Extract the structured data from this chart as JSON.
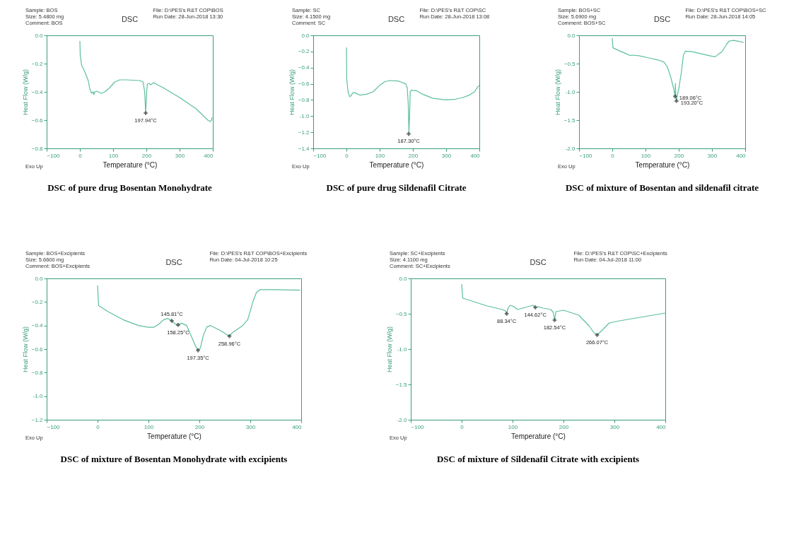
{
  "chart_data": [
    {
      "type": "line",
      "title": "DSC",
      "xlabel": "Temperature (°C)",
      "ylabel": "Heat Flow (W/g)",
      "xlim": [
        -100,
        400
      ],
      "xticks": [
        -100,
        0,
        100,
        200,
        300,
        400
      ],
      "ylim": [
        -0.8,
        0
      ],
      "yticks": [
        {
          "value": 0,
          "label": "0.0"
        },
        -0.2,
        -0.4,
        -0.6,
        -0.8
      ],
      "series": [
        {
          "color": "#5cbf9c",
          "x": [
            0,
            1,
            5,
            15,
            25,
            30,
            35,
            40,
            42,
            45,
            50,
            55,
            65,
            75,
            90,
            105,
            120,
            140,
            180,
            190,
            195,
            198,
            201,
            203,
            208,
            213,
            222,
            250,
            300,
            350,
            385,
            392,
            396,
            398
          ],
          "values": [
            -0.04,
            -0.14,
            -0.21,
            -0.26,
            -0.32,
            -0.38,
            -0.41,
            -0.4,
            -0.42,
            -0.4,
            -0.395,
            -0.4,
            -0.41,
            -0.4,
            -0.37,
            -0.33,
            -0.315,
            -0.315,
            -0.32,
            -0.33,
            -0.4,
            -0.55,
            -0.4,
            -0.345,
            -0.34,
            -0.35,
            -0.335,
            -0.37,
            -0.44,
            -0.52,
            -0.6,
            -0.61,
            -0.6,
            -0.58
          ]
        }
      ],
      "annotations": [
        "Sample: BOS",
        "Size: 5.4800 mg",
        "Comment: BOS",
        "File: D:\\PES's R&T COP\\BOS",
        "Run Date: 28-Jun-2018 13:30",
        "Exo Up",
        "DSC of pure drug Bosentan Monohydrate",
        {
          "text": "197.94°C",
          "x": 197.94,
          "y": -0.55
        }
      ]
    },
    {
      "type": "line",
      "title": "DSC",
      "xlabel": "Temperature (°C)",
      "ylabel": "Heat Flow (W/g)",
      "xlim": [
        -100,
        400
      ],
      "xticks": [
        -100,
        0,
        100,
        200,
        300,
        400
      ],
      "ylim": [
        -1.4,
        0
      ],
      "yticks": [
        {
          "value": 0,
          "label": "0.0"
        },
        -0.2,
        -0.4,
        -0.6,
        -0.8,
        {
          "value": -1,
          "label": "-1.0"
        },
        -1.2,
        -1.4
      ],
      "series": [
        {
          "color": "#5cbf9c",
          "x": [
            0,
            1,
            5,
            10,
            13,
            20,
            25,
            40,
            60,
            80,
            100,
            115,
            130,
            155,
            165,
            178,
            183,
            186,
            188,
            190,
            192,
            195,
            210,
            230,
            260,
            300,
            330,
            350,
            370,
            385,
            395,
            400
          ],
          "values": [
            -0.15,
            -0.55,
            -0.7,
            -0.76,
            -0.75,
            -0.71,
            -0.71,
            -0.74,
            -0.73,
            -0.7,
            -0.62,
            -0.575,
            -0.56,
            -0.565,
            -0.58,
            -0.6,
            -0.65,
            -0.85,
            -1.2,
            -1.0,
            -0.7,
            -0.68,
            -0.685,
            -0.73,
            -0.78,
            -0.8,
            -0.79,
            -0.77,
            -0.74,
            -0.7,
            -0.64,
            -0.62
          ]
        }
      ],
      "annotations": [
        "Sample: SC",
        "Size: 4.1500 mg",
        "Comment: SC",
        "File: D:\\PES's R&T COP\\SC",
        "Run Date: 28-Jun-2018 13:08",
        "Exo Up",
        "DSC of pure drug Sildenafil Citrate",
        {
          "text": "187.30°C",
          "x": 187.3,
          "y": -1.22
        }
      ]
    },
    {
      "type": "line",
      "title": "DSC",
      "xlabel": "Temperature (°C)",
      "ylabel": "Heat Flow (W/g)",
      "xlim": [
        -100,
        400
      ],
      "xticks": [
        -100,
        0,
        100,
        200,
        300,
        400
      ],
      "ylim": [
        -2,
        0
      ],
      "yticks": [
        {
          "value": 0,
          "label": "0.0"
        },
        -0.5,
        {
          "value": -1,
          "label": "-1.0"
        },
        -1.5,
        {
          "value": -2,
          "label": "-2.0"
        }
      ],
      "series": [
        {
          "color": "#5cbf9c",
          "x": [
            0,
            2,
            20,
            40,
            55,
            60,
            80,
            110,
            140,
            155,
            165,
            175,
            185,
            189,
            190,
            191,
            193,
            195,
            200,
            208,
            214,
            220,
            240,
            270,
            300,
            310,
            320,
            330,
            345,
            352,
            365,
            385,
            395
          ],
          "values": [
            -0.05,
            -0.22,
            -0.27,
            -0.32,
            -0.36,
            -0.35,
            -0.36,
            -0.4,
            -0.44,
            -0.47,
            -0.55,
            -0.72,
            -0.95,
            -1.08,
            -0.85,
            -1.05,
            -1.15,
            -1.08,
            -0.95,
            -0.65,
            -0.35,
            -0.28,
            -0.29,
            -0.33,
            -0.37,
            -0.38,
            -0.33,
            -0.29,
            -0.15,
            -0.1,
            -0.09,
            -0.11,
            -0.13
          ]
        }
      ],
      "annotations": [
        "Sample: BOS+SC",
        "Size: 5.6900 mg",
        "Comment: BOS+SC",
        "File: D:\\PES's R&T COP\\BOS+SC",
        "Run Date: 28-Jun-2018 14:05",
        "Exo Up",
        "DSC of mixture  of Bosentan and sildenafil citrate",
        {
          "text": "189.06°C",
          "x": 189.06,
          "y": -1.08
        },
        {
          "text": "193.20°C",
          "x": 193.2,
          "y": -1.16
        }
      ]
    },
    {
      "type": "line",
      "title": "DSC",
      "xlabel": "Temperature (°C)",
      "ylabel": "Heat Flow (W/g)",
      "xlim": [
        -100,
        400
      ],
      "xticks": [
        -100,
        0,
        100,
        200,
        300,
        400
      ],
      "ylim": [
        -1.2,
        0
      ],
      "yticks": [
        {
          "value": 0,
          "label": "0.0"
        },
        -0.2,
        -0.4,
        -0.6,
        -0.8,
        {
          "value": -1,
          "label": "-1.0"
        },
        -1.2
      ],
      "series": [
        {
          "color": "#5cbf9c",
          "x": [
            0,
            2,
            20,
            50,
            80,
            100,
            110,
            120,
            130,
            138,
            145.81,
            152,
            158.25,
            165,
            175,
            185,
            193,
            197.35,
            202,
            208,
            215,
            222,
            240,
            258.96,
            265,
            275,
            285,
            295,
            305,
            312,
            320,
            350,
            398
          ],
          "values": [
            -0.06,
            -0.23,
            -0.28,
            -0.35,
            -0.4,
            -0.415,
            -0.415,
            -0.39,
            -0.35,
            -0.34,
            -0.36,
            -0.385,
            -0.395,
            -0.38,
            -0.4,
            -0.5,
            -0.58,
            -0.61,
            -0.59,
            -0.48,
            -0.41,
            -0.4,
            -0.44,
            -0.49,
            -0.46,
            -0.43,
            -0.4,
            -0.35,
            -0.2,
            -0.12,
            -0.095,
            -0.095,
            -0.1
          ]
        }
      ],
      "annotations": [
        "Sample: BOS+Excipients",
        "Size: 5.6600 mg",
        "Comment: BOS+Excipients",
        "File: D:\\PES's R&T COP\\BOS+Excipients",
        "Run Date: 04-Jul-2018 10:25",
        "Exo Up",
        "DSC of mixture of Bosentan Monohydrate with excipients",
        {
          "text": "145.81°C",
          "x": 145.81,
          "y": -0.36
        },
        {
          "text": "158.25°C",
          "x": 158.25,
          "y": -0.395
        },
        {
          "text": "197.35°C",
          "x": 197.35,
          "y": -0.61
        },
        {
          "text": "258.96°C",
          "x": 258.96,
          "y": -0.49
        }
      ]
    },
    {
      "type": "line",
      "title": "DSC",
      "xlabel": "Temperature (°C)",
      "ylabel": "Heat Flow (W/g)",
      "xlim": [
        -100,
        400
      ],
      "xticks": [
        -100,
        0,
        100,
        200,
        300,
        400
      ],
      "ylim": [
        -2,
        0
      ],
      "yticks": [
        {
          "value": 0,
          "label": "0.0"
        },
        -0.5,
        {
          "value": -1,
          "label": "-1.0"
        },
        -1.5,
        {
          "value": -2,
          "label": "-2.0"
        }
      ],
      "series": [
        {
          "color": "#5cbf9c",
          "x": [
            0,
            2,
            20,
            50,
            80,
            86,
            88.34,
            91,
            95,
            100,
            110,
            125,
            140,
            144.62,
            150,
            160,
            175,
            180,
            182.54,
            185,
            200,
            230,
            250,
            260,
            266.07,
            275,
            290,
            310,
            400
          ],
          "values": [
            -0.08,
            -0.28,
            -0.32,
            -0.39,
            -0.44,
            -0.46,
            -0.5,
            -0.42,
            -0.38,
            -0.39,
            -0.44,
            -0.41,
            -0.38,
            -0.41,
            -0.4,
            -0.42,
            -0.44,
            -0.48,
            -0.59,
            -0.47,
            -0.45,
            -0.52,
            -0.67,
            -0.77,
            -0.8,
            -0.74,
            -0.63,
            -0.6,
            -0.49
          ]
        }
      ],
      "annotations": [
        "Sample: SC+Excipients",
        "Size: 4.1100 mg",
        "Comment: SC+Excipients",
        "File: D:\\PES's R&T COP\\SC+Excipients",
        "Run Date: 04-Jul-2018 11:00",
        "Exo Up",
        "DSC of mixture  of Sildenafil Citrate with excipients",
        {
          "text": "88.34°C",
          "x": 88.34,
          "y": -0.5
        },
        {
          "text": "144.62°C",
          "x": 144.62,
          "y": -0.41
        },
        {
          "text": "182.54°C",
          "x": 182.54,
          "y": -0.59
        },
        {
          "text": "266.07°C",
          "x": 266.07,
          "y": -0.8
        }
      ]
    }
  ]
}
